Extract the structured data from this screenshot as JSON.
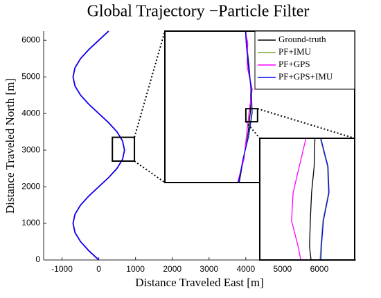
{
  "chart_data": [
    {
      "type": "line",
      "title": "Global Trajectory −Particle Filter",
      "xlabel": "Distance Traveled East [m]",
      "ylabel": "Distance Traveled North [m]",
      "xlim": [
        -1500,
        7000
      ],
      "ylim": [
        0,
        6250
      ],
      "xticks": [
        -1000,
        0,
        1000,
        2000,
        3000,
        4000,
        5000,
        6000
      ],
      "yticks": [
        0,
        1000,
        2000,
        3000,
        4000,
        5000,
        6000
      ],
      "legend": "upper right",
      "y": [
        0,
        250,
        500,
        750,
        1000,
        1250,
        1500,
        1750,
        2000,
        2250,
        2500,
        2750,
        3000,
        3250,
        3500,
        3750,
        4000,
        4250,
        4500,
        4750,
        5000,
        5250,
        5500,
        5750,
        6000,
        6250
      ],
      "series": [
        {
          "name": "Ground-truth",
          "color": "#000000",
          "x": [
            0,
            -268,
            -495,
            -647,
            -700,
            -647,
            -495,
            -268,
            0,
            268,
            495,
            647,
            700,
            647,
            495,
            268,
            0,
            -268,
            -495,
            -647,
            -700,
            -647,
            -495,
            -268,
            0,
            268
          ]
        },
        {
          "name": "PF+IMU",
          "color": "#77ac30",
          "x": [
            0,
            -268,
            -495,
            -647,
            -700,
            -647,
            -495,
            -268,
            0,
            268,
            495,
            647,
            700,
            647,
            495,
            268,
            0,
            -268,
            -495,
            -647,
            -700,
            -647,
            -495,
            -268,
            0,
            268
          ]
        },
        {
          "name": "PF+GPS",
          "color": "#ff00ff",
          "x": [
            0,
            -268,
            -495,
            -647,
            -700,
            -647,
            -495,
            -268,
            0,
            268,
            495,
            647,
            700,
            647,
            495,
            268,
            0,
            -268,
            -495,
            -647,
            -700,
            -647,
            -495,
            -268,
            0,
            268
          ]
        },
        {
          "name": "PF+GPS+IMU",
          "color": "#0000ff",
          "x": [
            0,
            -268,
            -495,
            -647,
            -700,
            -647,
            -495,
            -268,
            0,
            268,
            495,
            647,
            700,
            647,
            495,
            268,
            0,
            -268,
            -495,
            -647,
            -700,
            -647,
            -495,
            -268,
            0,
            268
          ]
        }
      ]
    },
    {
      "type": "line",
      "xlim": [
        370,
        970
      ],
      "ylim": [
        2700,
        3350
      ],
      "y": [
        2700,
        2800,
        2900,
        3000,
        3100,
        3200,
        3300,
        3350
      ],
      "series": [
        {
          "color": "#000000",
          "x": [
            605,
            618,
            632,
            640,
            642,
            636,
            628,
            626
          ]
        },
        {
          "color": "#77ac30",
          "x": [
            603,
            617,
            634,
            645,
            643,
            634,
            627,
            625
          ]
        },
        {
          "color": "#ff00ff",
          "x": [
            600,
            620,
            628,
            636,
            646,
            630,
            632,
            624
          ]
        },
        {
          "color": "#0000ff",
          "x": [
            603,
            617,
            635,
            646,
            643,
            634,
            627,
            625
          ]
        }
      ]
    },
    {
      "type": "line",
      "xlim": [
        626,
        663
      ],
      "ylim": [
        2961,
        3017
      ],
      "y": [
        3017,
        3004,
        2992,
        2979,
        2967,
        2961
      ],
      "series": [
        {
          "color": "#000000",
          "x": [
            647.5,
            647.2,
            646.2,
            645.7,
            645.4,
            646.0
          ]
        },
        {
          "color": "#77ac30",
          "x": [
            649.6,
            652.4,
            652.8,
            650.6,
            649.8,
            649.5
          ]
        },
        {
          "color": "#ff00ff",
          "x": [
            644.0,
            641.4,
            639.0,
            638.4,
            641.0,
            642.0
          ]
        },
        {
          "color": "#0000ff",
          "x": [
            649.8,
            652.6,
            653.0,
            650.8,
            650.0,
            649.8
          ]
        }
      ]
    }
  ]
}
